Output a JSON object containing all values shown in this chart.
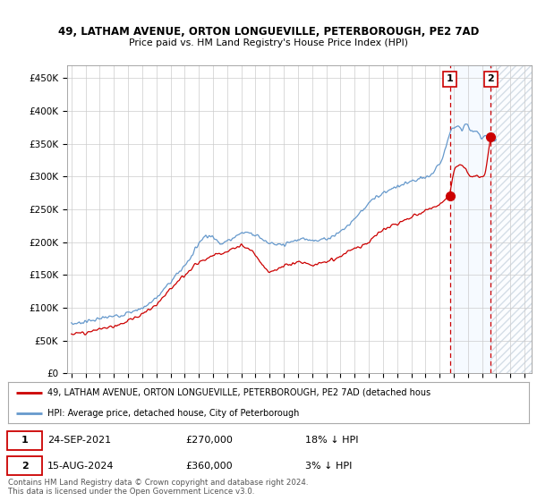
{
  "title1": "49, LATHAM AVENUE, ORTON LONGUEVILLE, PETERBOROUGH, PE2 7AD",
  "title2": "Price paid vs. HM Land Registry's House Price Index (HPI)",
  "ylabel_ticks": [
    "£0",
    "£50K",
    "£100K",
    "£150K",
    "£200K",
    "£250K",
    "£300K",
    "£350K",
    "£400K",
    "£450K"
  ],
  "ytick_values": [
    0,
    50000,
    100000,
    150000,
    200000,
    250000,
    300000,
    350000,
    400000,
    450000
  ],
  "ylim": [
    0,
    470000
  ],
  "xlim_start": 1994.7,
  "xlim_end": 2027.5,
  "legend1_label": "49, LATHAM AVENUE, ORTON LONGUEVILLE, PETERBOROUGH, PE2 7AD (detached hous",
  "legend2_label": "HPI: Average price, detached house, City of Peterborough",
  "legend1_color": "#cc0000",
  "legend2_color": "#6699cc",
  "point1_x": 2021.73,
  "point1_y": 270000,
  "point2_x": 2024.62,
  "point2_y": 360000,
  "point1_date": "24-SEP-2021",
  "point1_price": "£270,000",
  "point1_hpi": "18% ↓ HPI",
  "point2_date": "15-AUG-2024",
  "point2_price": "£360,000",
  "point2_hpi": "3% ↓ HPI",
  "footer1": "Contains HM Land Registry data © Crown copyright and database right 2024.",
  "footer2": "This data is licensed under the Open Government Licence v3.0.",
  "background_color": "#ffffff",
  "grid_color": "#cccccc",
  "shaded_region_color": "#ddeeff",
  "annotation_box_color": "#cc0000",
  "shade_start": 2021.73,
  "shade_end": 2024.62
}
